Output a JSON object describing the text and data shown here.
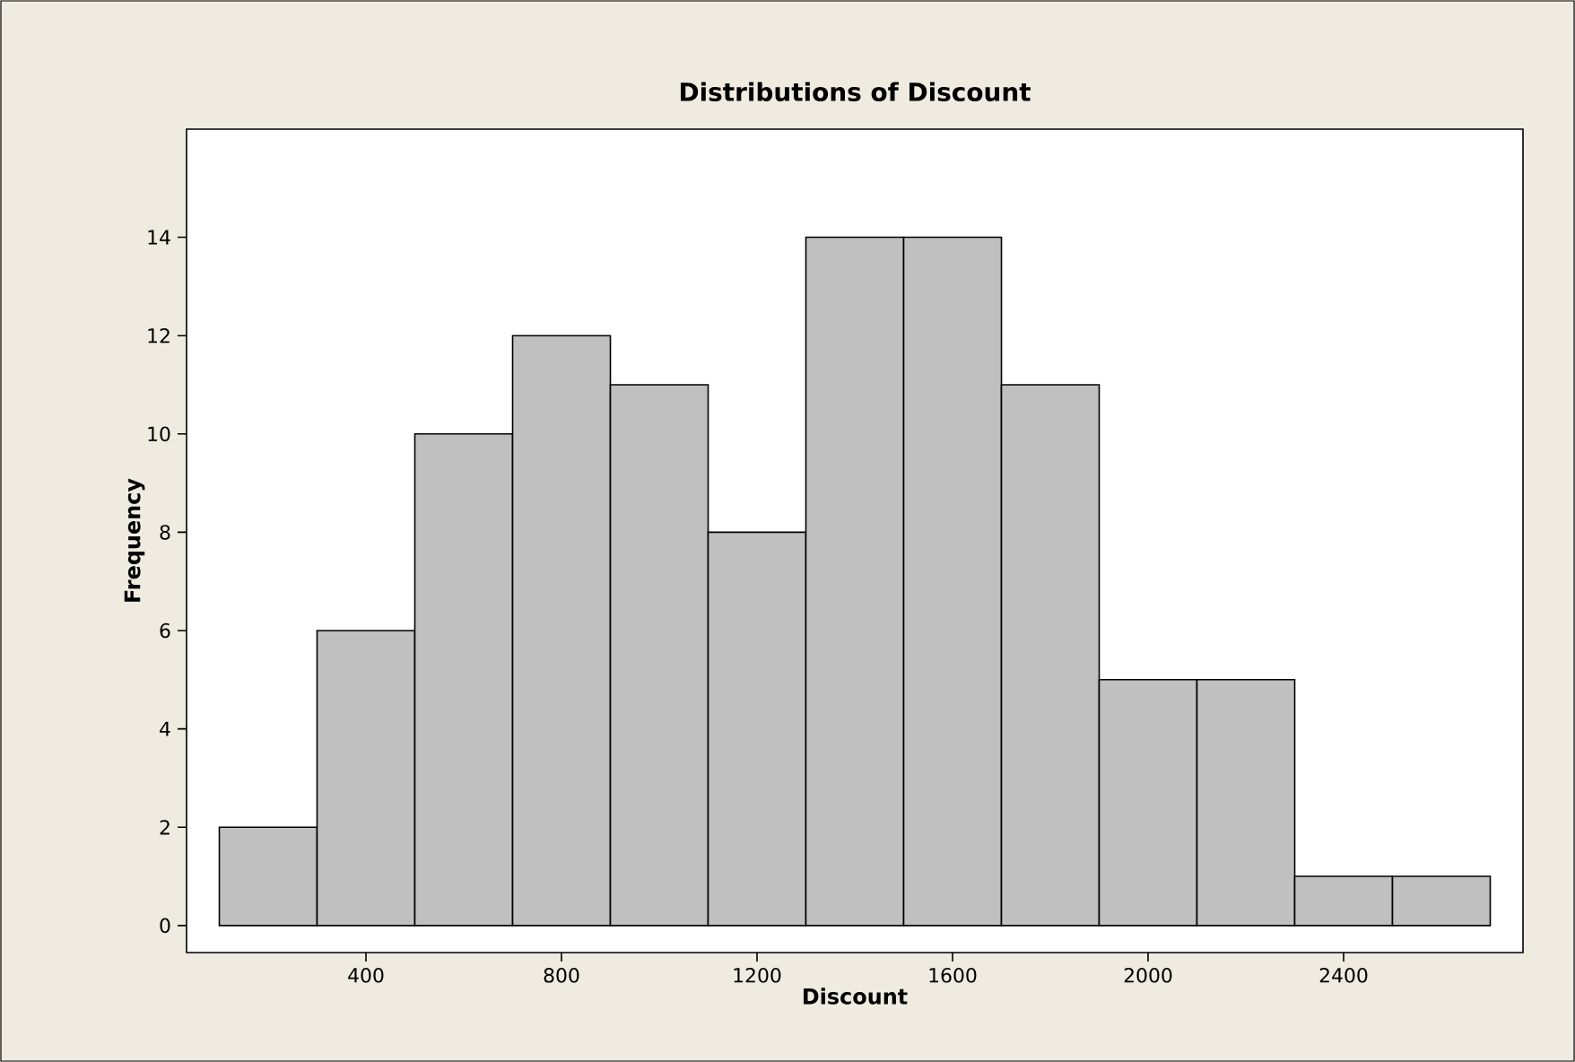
{
  "chart_data": {
    "type": "histogram",
    "title": "Distributions of Discount",
    "xlabel": "Discount",
    "ylabel": "Frequency",
    "bins": [
      100,
      300,
      500,
      700,
      900,
      1100,
      1300,
      1500,
      1700,
      1900,
      2100,
      2300,
      2500,
      2700
    ],
    "values": [
      2,
      6,
      10,
      12,
      11,
      8,
      14,
      14,
      11,
      5,
      5,
      1,
      1
    ],
    "color": "#c0c0c0",
    "xlim": [
      33,
      2767
    ],
    "ylim": [
      -0.55,
      16.2
    ],
    "xticks": [
      400,
      800,
      1200,
      1600,
      2000,
      2400
    ],
    "yticks": [
      0,
      2,
      4,
      6,
      8,
      10,
      12,
      14
    ]
  }
}
